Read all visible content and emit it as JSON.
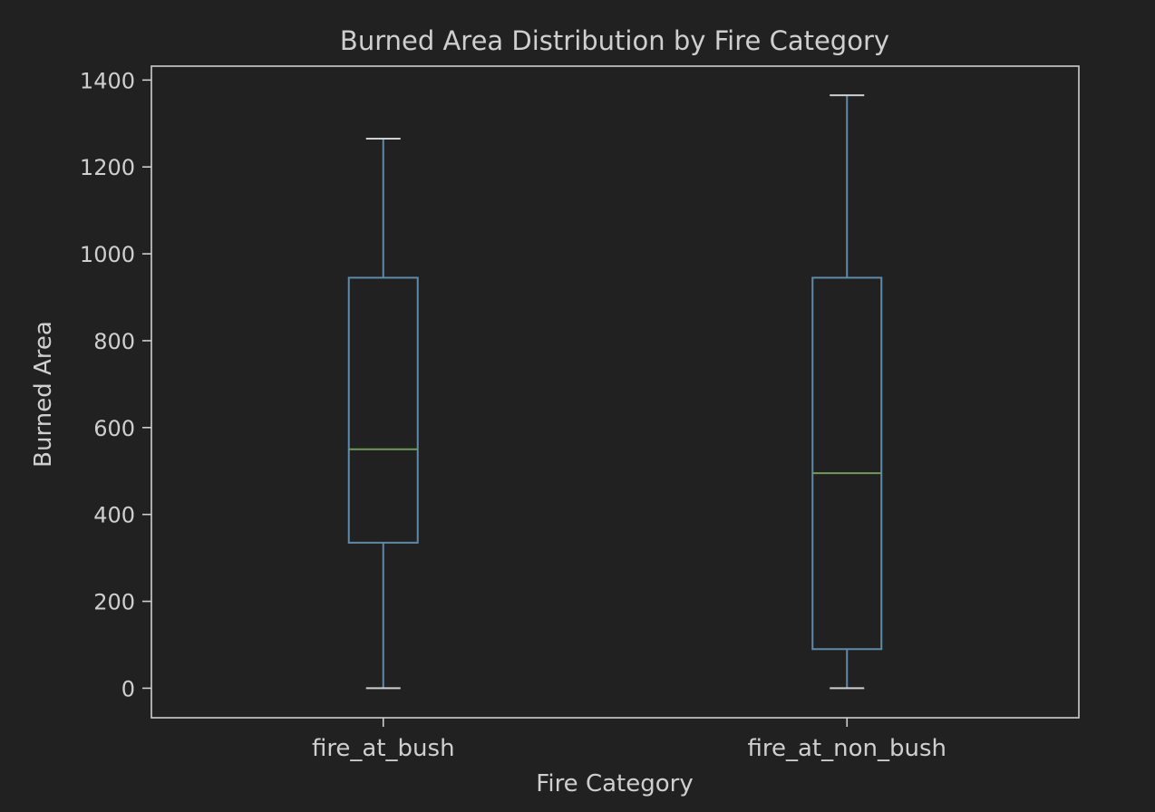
{
  "chart_data": {
    "type": "box",
    "title": "Burned Area Distribution by Fire Category",
    "xlabel": "Fire Category",
    "ylabel": "Burned Area",
    "categories": [
      "fire_at_bush",
      "fire_at_non_bush"
    ],
    "boxes": [
      {
        "category": "fire_at_bush",
        "whisker_low": 0,
        "q1": 335,
        "median": 550,
        "q3": 945,
        "whisker_high": 1265
      },
      {
        "category": "fire_at_non_bush",
        "whisker_low": 0,
        "q1": 90,
        "median": 495,
        "q3": 945,
        "whisker_high": 1365
      }
    ],
    "yticks": [
      0,
      200,
      400,
      600,
      800,
      1000,
      1200,
      1400
    ],
    "ylim": [
      -68,
      1432
    ],
    "grid": false,
    "colors": {
      "background": "#212121",
      "frame": "#cfcfcf",
      "text": "#cfcfcf",
      "box": "#5f8aa8",
      "median": "#6f9a5a"
    }
  }
}
